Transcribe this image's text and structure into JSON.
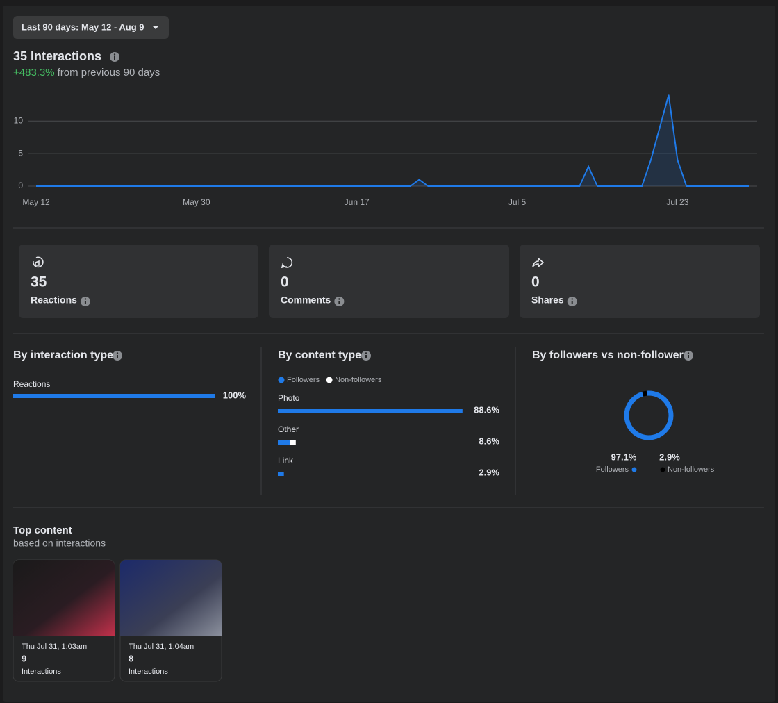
{
  "date_range": "Last 90 days: May 12 - Aug 9",
  "summary": {
    "title": "35 Interactions",
    "change": "+483.3%",
    "change_text": "from previous 90 days"
  },
  "chart_data": {
    "type": "line",
    "color": "#1f7ae8",
    "grid": true,
    "x": [
      "May 12",
      "May 13",
      "May 14",
      "May 15",
      "May 16",
      "May 17",
      "May 18",
      "May 19",
      "May 20",
      "May 21",
      "May 22",
      "May 23",
      "May 24",
      "May 25",
      "May 26",
      "May 27",
      "May 28",
      "May 29",
      "May 30",
      "May 31",
      "Jun 1",
      "Jun 2",
      "Jun 3",
      "Jun 4",
      "Jun 5",
      "Jun 6",
      "Jun 7",
      "Jun 8",
      "Jun 9",
      "Jun 10",
      "Jun 11",
      "Jun 12",
      "Jun 13",
      "Jun 14",
      "Jun 15",
      "Jun 16",
      "Jun 17",
      "Jun 18",
      "Jun 19",
      "Jun 20",
      "Jun 21",
      "Jun 22",
      "Jun 23",
      "Jun 24",
      "Jun 25",
      "Jun 26",
      "Jun 27",
      "Jun 28",
      "Jun 29",
      "Jun 30",
      "Jul 1",
      "Jul 2",
      "Jul 3",
      "Jul 4",
      "Jul 5",
      "Jul 6",
      "Jul 7",
      "Jul 8",
      "Jul 9",
      "Jul 10",
      "Jul 11",
      "Jul 12",
      "Jul 13",
      "Jul 14",
      "Jul 15",
      "Jul 16",
      "Jul 17",
      "Jul 18",
      "Jul 19",
      "Jul 20",
      "Jul 21",
      "Jul 22",
      "Jul 23",
      "Jul 24",
      "Jul 25",
      "Jul 26",
      "Jul 27",
      "Jul 28",
      "Jul 29",
      "Jul 30",
      "Jul 31"
    ],
    "values": [
      0,
      0,
      0,
      0,
      0,
      0,
      0,
      0,
      0,
      0,
      0,
      0,
      0,
      0,
      0,
      0,
      0,
      0,
      0,
      0,
      0,
      0,
      0,
      0,
      0,
      0,
      0,
      0,
      0,
      0,
      0,
      0,
      0,
      0,
      0,
      0,
      0,
      0,
      0,
      0,
      0,
      0,
      0,
      1,
      0,
      0,
      0,
      0,
      0,
      0,
      0,
      0,
      0,
      0,
      0,
      0,
      0,
      0,
      0,
      0,
      0,
      0,
      3,
      0,
      0,
      0,
      0,
      0,
      0,
      4,
      9,
      14,
      4,
      0,
      0,
      0,
      0,
      0,
      0,
      0,
      0
    ],
    "ylim": [
      0,
      14.5
    ],
    "yticks": [
      0,
      5,
      10
    ],
    "xticks": [
      "May 12",
      "May 30",
      "Jun 17",
      "Jul 5",
      "Jul 23"
    ]
  },
  "cards": [
    {
      "value": 35,
      "label": "Reactions"
    },
    {
      "value": 0,
      "label": "Comments"
    },
    {
      "value": 0,
      "label": "Shares"
    }
  ],
  "interaction_type": {
    "title": "By interaction type",
    "categories": [
      "Reactions"
    ],
    "values": [
      100
    ],
    "value_labels": [
      "100%"
    ],
    "color": "#1f7ae8"
  },
  "content_type": {
    "title": "By content type",
    "categories": [
      "Photo",
      "Other",
      "Link"
    ],
    "series": [
      {
        "name": "Followers",
        "color": "#1f7ae8",
        "values": [
          88.6,
          5.7,
          2.9
        ]
      },
      {
        "name": "Non-followers",
        "color": "#ffffff",
        "values": [
          0,
          2.9,
          0
        ]
      }
    ],
    "total_labels": [
      "88.6%",
      "8.6%",
      "2.9%"
    ]
  },
  "followers": {
    "title": "By followers vs non-followers",
    "type": "pie",
    "categories": [
      "Followers",
      "Non-followers"
    ],
    "values": [
      97.1,
      2.9
    ],
    "value_labels": [
      "97.1%",
      "2.9%"
    ],
    "colors": [
      "#1f7ae8",
      "#000000"
    ]
  },
  "top_content": {
    "title": "Top content",
    "subtitle": "based on interactions",
    "posts": [
      {
        "date": "Thu Jul 31, 1:03am",
        "value": 9,
        "label": "Interactions"
      },
      {
        "date": "Thu Jul 31, 1:04am",
        "value": 8,
        "label": "Interactions"
      }
    ]
  }
}
